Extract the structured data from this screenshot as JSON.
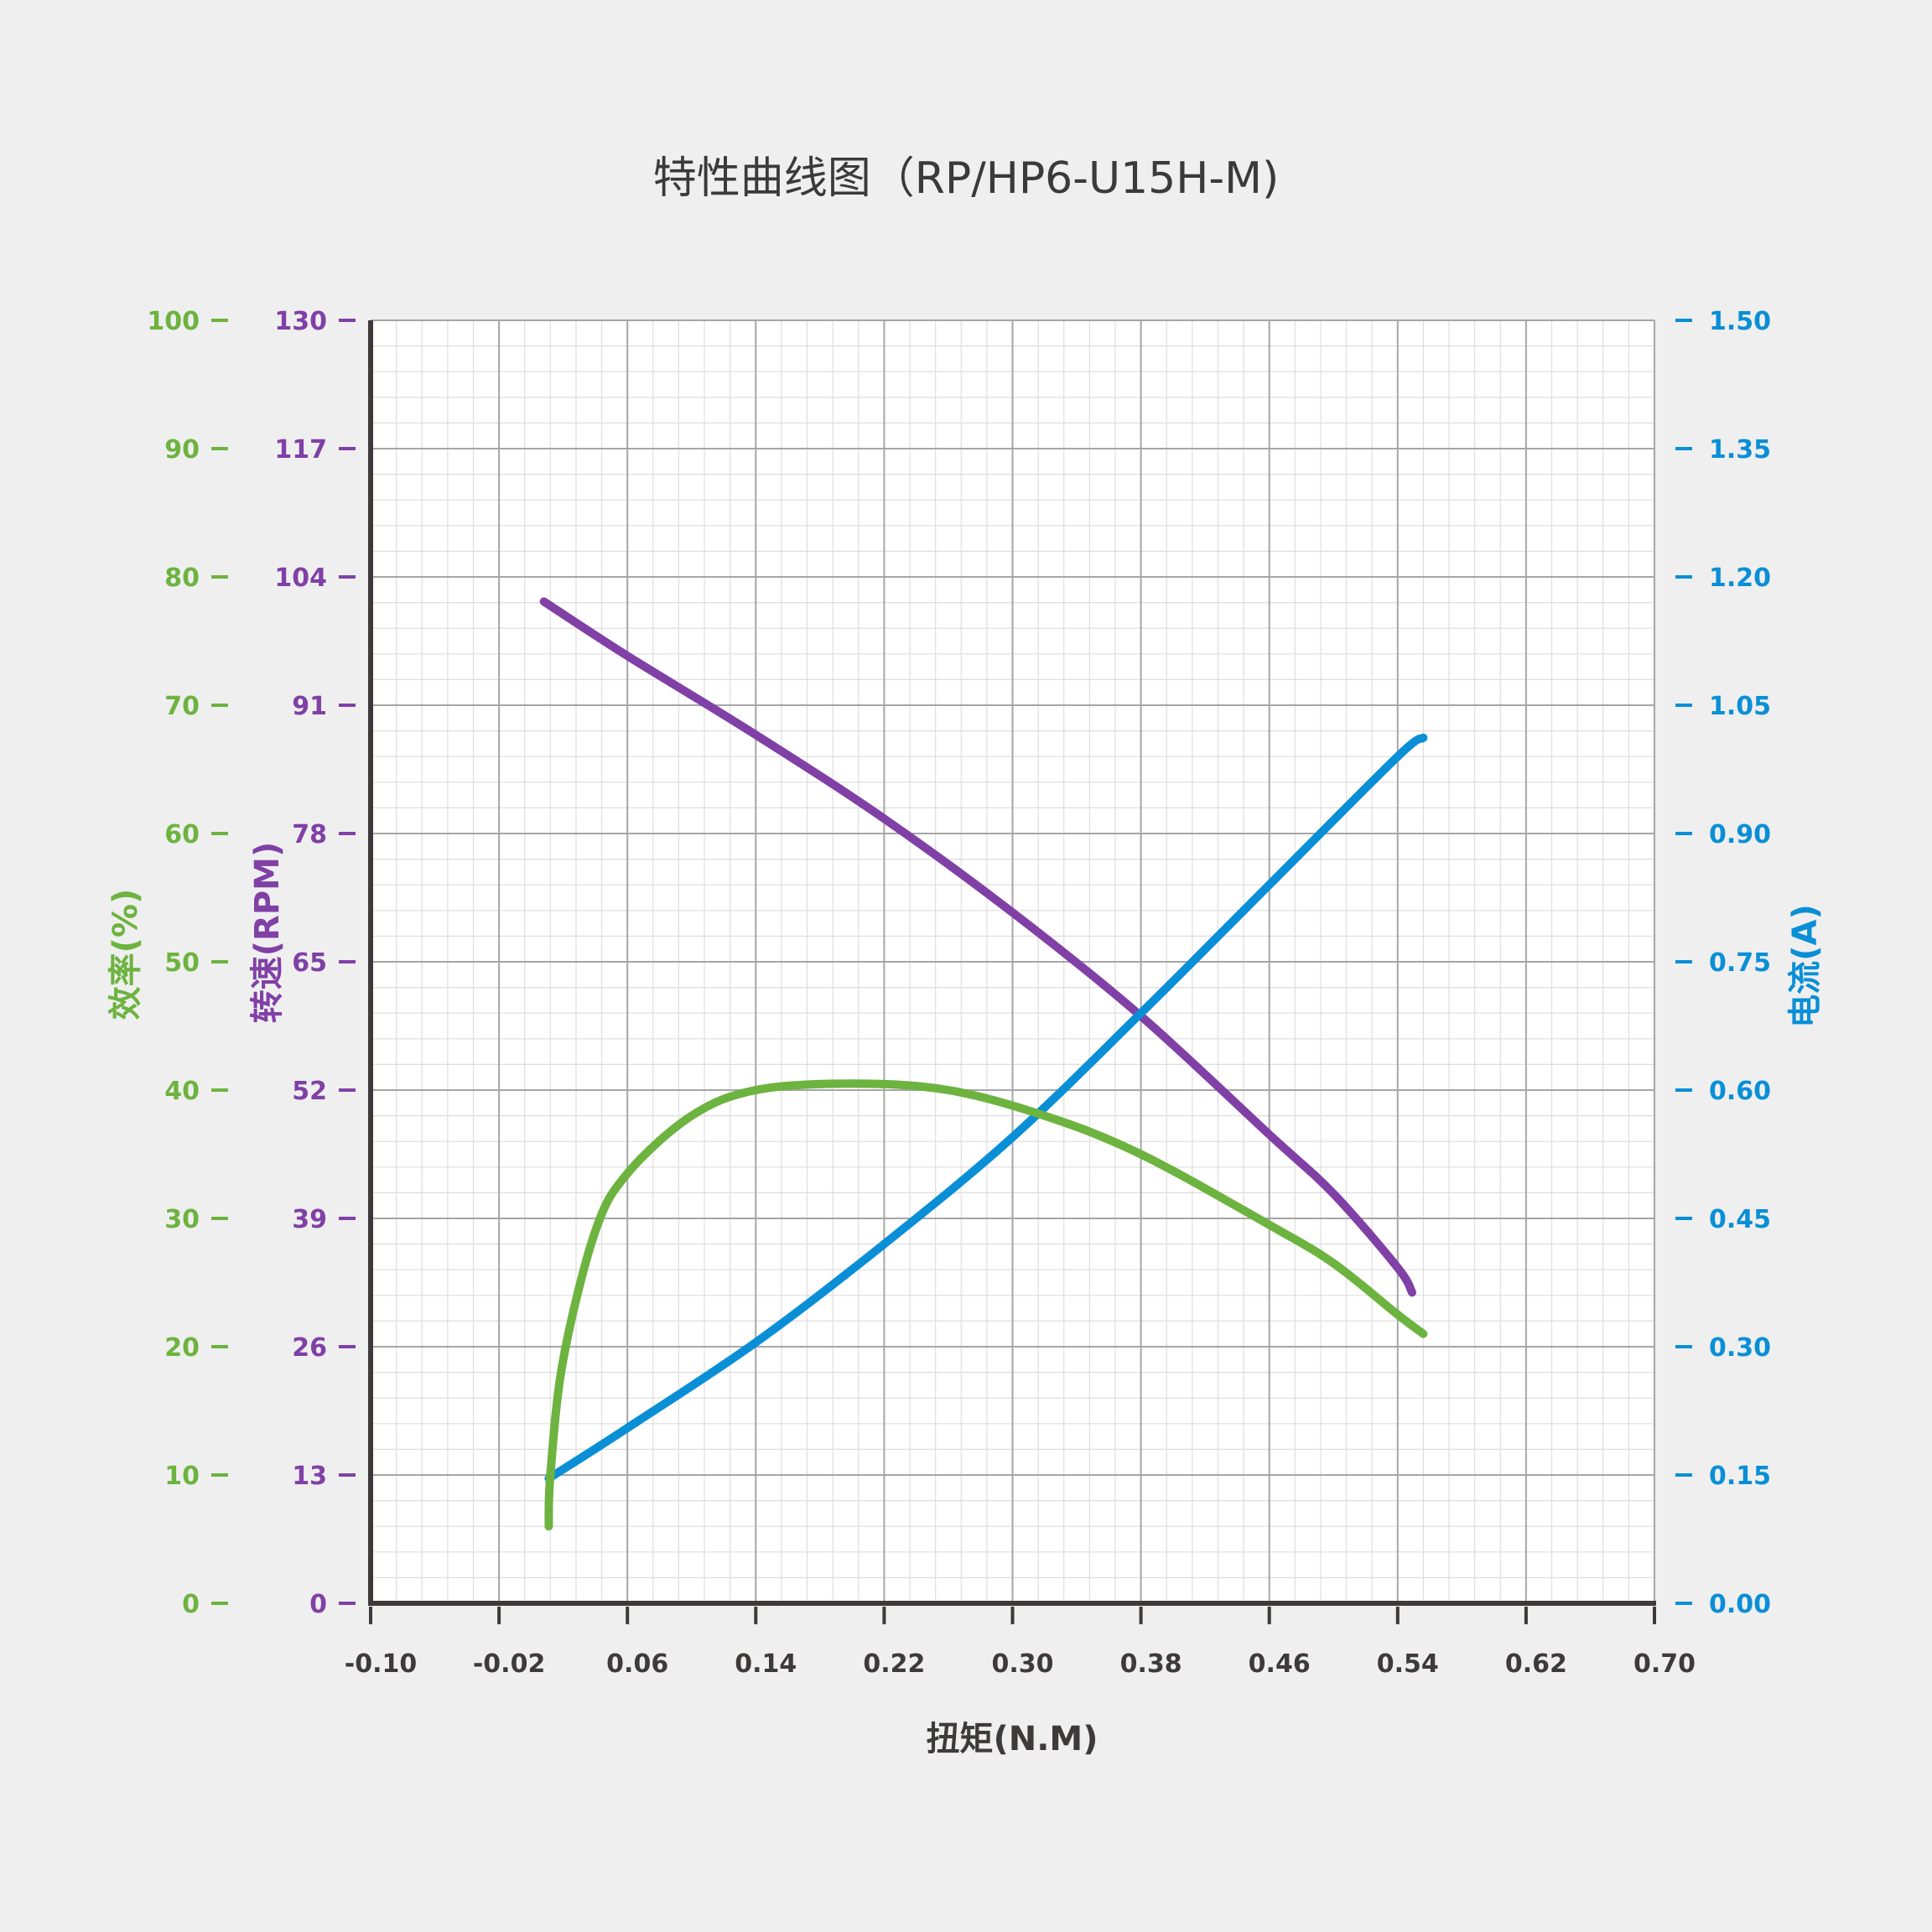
{
  "colors": {
    "efficiency": "#6db33f",
    "speed": "#8040a6",
    "current": "#0a8fd6",
    "axis": "#3e3a3a",
    "grid_major": "#a6a6a6",
    "grid_minor": "#dedede",
    "plot_bg": "#ffffff",
    "page_bg": "#efefef"
  },
  "chart_data": {
    "type": "line",
    "title": "特性曲线图（RP/HP6-U15H-M)",
    "xlabel": "扭矩(N.M)",
    "xlim": [
      -0.1,
      0.7
    ],
    "x_ticks": [
      "-0.10",
      "-0.02",
      "0.06",
      "0.14",
      "0.22",
      "0.30",
      "0.38",
      "0.46",
      "0.54",
      "0.62",
      "0.70"
    ],
    "y_axes": {
      "efficiency": {
        "label": "效率(%)",
        "lim": [
          0,
          100
        ],
        "ticks": [
          "0",
          "10",
          "20",
          "30",
          "40",
          "50",
          "60",
          "70",
          "80",
          "90",
          "100"
        ],
        "side": "left-outer"
      },
      "speed": {
        "label": "转速(RPM)",
        "lim": [
          0,
          130
        ],
        "ticks": [
          "0",
          "13",
          "26",
          "39",
          "52",
          "65",
          "78",
          "91",
          "104",
          "117",
          "130"
        ],
        "side": "left-inner"
      },
      "current": {
        "label": "电流(A)",
        "lim": [
          0,
          1.5
        ],
        "ticks": [
          "0.00",
          "0.15",
          "0.30",
          "0.45",
          "0.60",
          "0.75",
          "0.90",
          "1.05",
          "1.20",
          "1.35",
          "1.50"
        ],
        "side": "right"
      }
    },
    "grid": true,
    "series": [
      {
        "key": "speed",
        "axis": "speed",
        "color_key": "speed",
        "x": [
          0.008,
          0.06,
          0.14,
          0.22,
          0.3,
          0.38,
          0.46,
          0.5,
          0.54,
          0.549
        ],
        "y": [
          101.5,
          96.0,
          88.0,
          79.5,
          70.0,
          59.5,
          47.5,
          41.5,
          34.0,
          31.5
        ]
      },
      {
        "key": "current",
        "axis": "current",
        "color_key": "current",
        "x": [
          0.011,
          0.06,
          0.14,
          0.22,
          0.3,
          0.38,
          0.46,
          0.54,
          0.556
        ],
        "y": [
          0.146,
          0.205,
          0.305,
          0.42,
          0.545,
          0.69,
          0.84,
          0.99,
          1.012
        ]
      },
      {
        "key": "efficiency",
        "axis": "efficiency",
        "color_key": "efficiency",
        "x": [
          0.011,
          0.012,
          0.02,
          0.04,
          0.06,
          0.1,
          0.14,
          0.2,
          0.26,
          0.32,
          0.38,
          0.46,
          0.5,
          0.54,
          0.556
        ],
        "y": [
          6.0,
          10.0,
          19.0,
          29.0,
          33.5,
          38.0,
          40.0,
          40.5,
          40.0,
          38.0,
          35.0,
          29.5,
          26.5,
          22.5,
          21.0
        ]
      }
    ]
  }
}
